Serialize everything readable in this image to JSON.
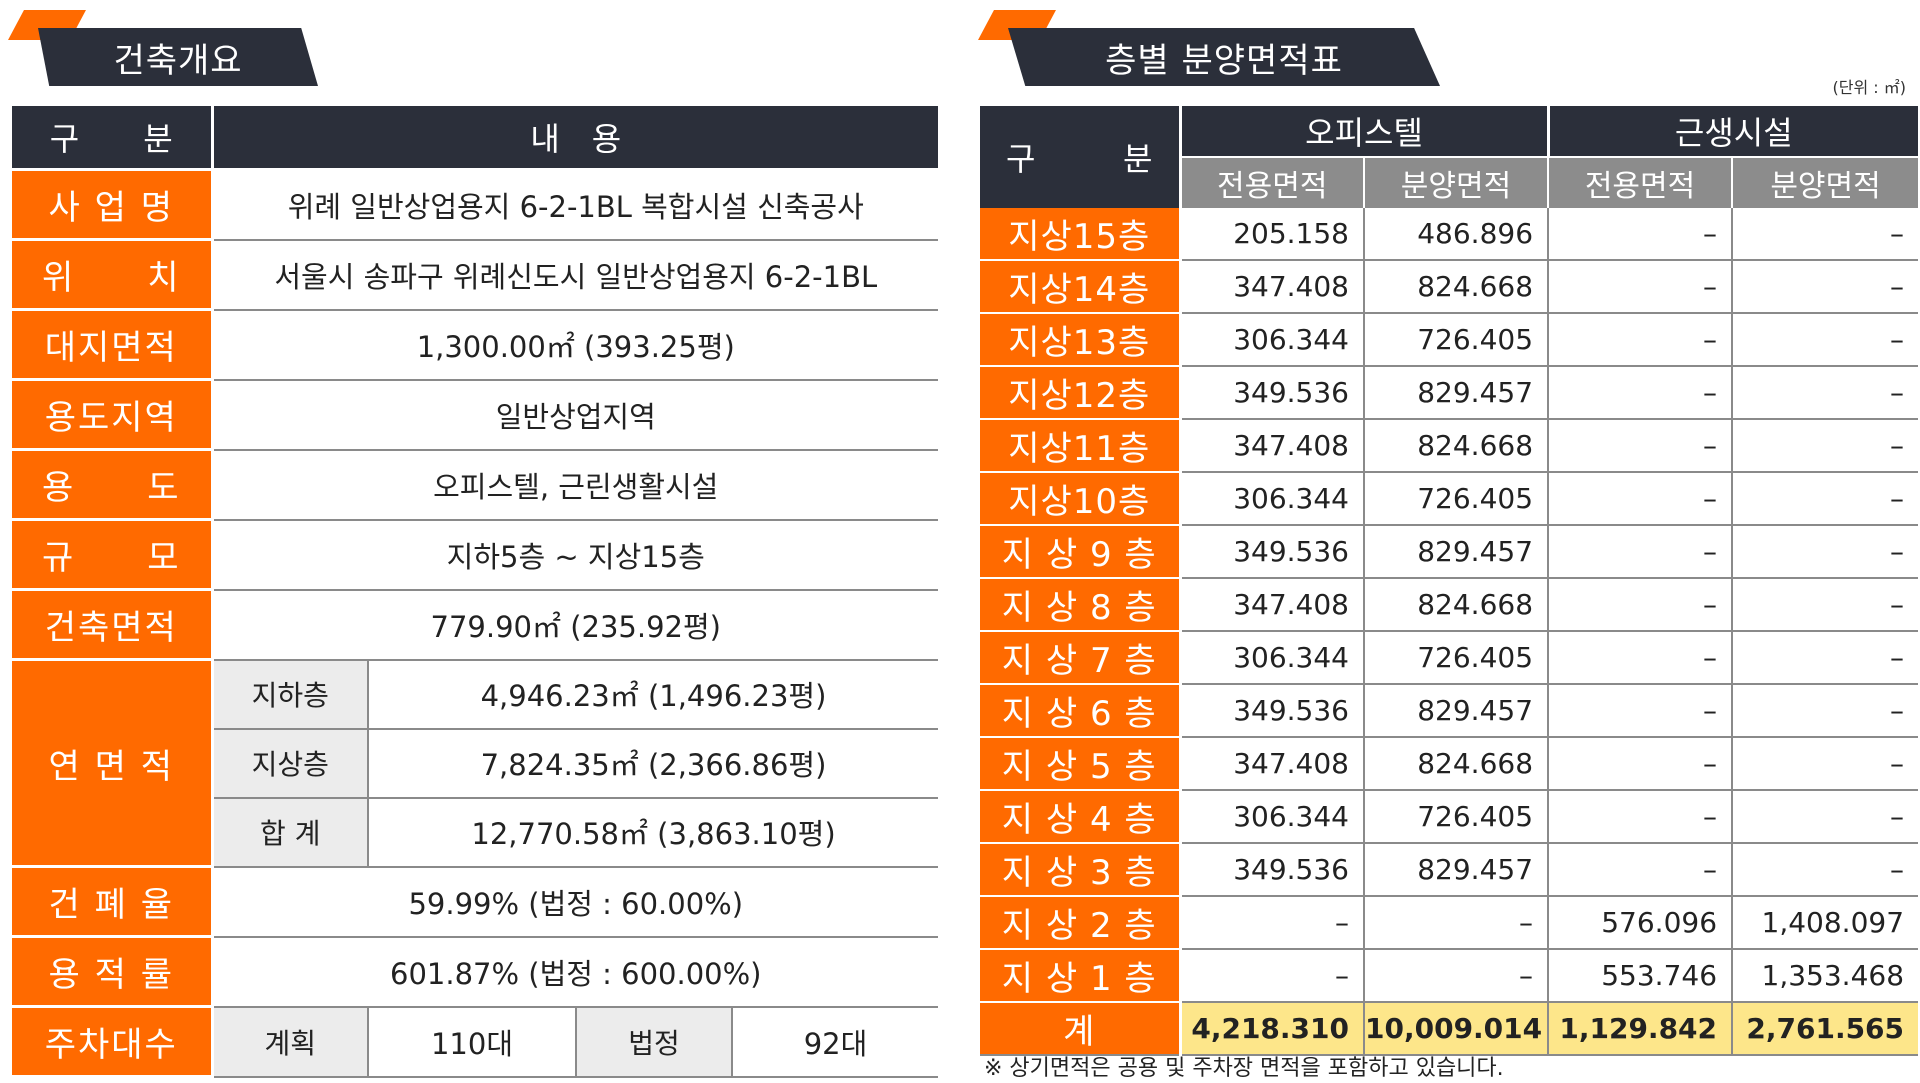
{
  "left_section": {
    "title": "건축개요"
  },
  "right_section": {
    "title": "층별 분양면적표",
    "unit": "(단위 : ㎡)"
  },
  "overview": {
    "header": {
      "col1": "구　　분",
      "col2": "내　용"
    },
    "rows": [
      {
        "key": "사 업 명",
        "value": "위례 일반상업용지 6-2-1BL 복합시설 신축공사"
      },
      {
        "key": "위　　치",
        "value": "서울시 송파구 위례신도시 일반상업용지 6-2-1BL"
      },
      {
        "key": "대지면적",
        "value": "1,300.00㎡ (393.25평)"
      },
      {
        "key": "용도지역",
        "value": "일반상업지역"
      },
      {
        "key": "용　　도",
        "value": "오피스텔, 근린생활시설"
      },
      {
        "key": "규　　모",
        "value": "지하5층 ~ 지상15층"
      },
      {
        "key": "건축면적",
        "value": "779.90㎡ (235.92평)"
      }
    ],
    "gross_area": {
      "key": "연 면 적",
      "rows": [
        {
          "label": "지하층",
          "value": "4,946.23㎡ (1,496.23평)"
        },
        {
          "label": "지상층",
          "value": "7,824.35㎡ (2,366.86평)"
        },
        {
          "label": "합 계",
          "value": "12,770.58㎡ (3,863.10평)"
        }
      ]
    },
    "rows2": [
      {
        "key": "건 폐 율",
        "value": "59.99% (법정 : 60.00%)"
      },
      {
        "key": "용 적 률",
        "value": "601.87% (법정 : 600.00%)"
      }
    ],
    "parking": {
      "key": "주차대수",
      "plan_label": "계획",
      "plan_value": "110대",
      "legal_label": "법정",
      "legal_value": "92대"
    }
  },
  "floors": {
    "header": {
      "gubun_a": "구",
      "gubun_b": "분",
      "group1": "오피스텔",
      "group2": "근생시설",
      "sub1": "전용면적",
      "sub2": "분양면적",
      "sub3": "전용면적",
      "sub4": "분양면적"
    },
    "rows": [
      {
        "floor": "지상15층",
        "v1": "205.158",
        "v2": "486.896",
        "v3": "–",
        "v4": "–"
      },
      {
        "floor": "지상14층",
        "v1": "347.408",
        "v2": "824.668",
        "v3": "–",
        "v4": "–"
      },
      {
        "floor": "지상13층",
        "v1": "306.344",
        "v2": "726.405",
        "v3": "–",
        "v4": "–"
      },
      {
        "floor": "지상12층",
        "v1": "349.536",
        "v2": "829.457",
        "v3": "–",
        "v4": "–"
      },
      {
        "floor": "지상11층",
        "v1": "347.408",
        "v2": "824.668",
        "v3": "–",
        "v4": "–"
      },
      {
        "floor": "지상10층",
        "v1": "306.344",
        "v2": "726.405",
        "v3": "–",
        "v4": "–"
      },
      {
        "floor": "지 상 9 층",
        "v1": "349.536",
        "v2": "829.457",
        "v3": "–",
        "v4": "–"
      },
      {
        "floor": "지 상 8 층",
        "v1": "347.408",
        "v2": "824.668",
        "v3": "–",
        "v4": "–"
      },
      {
        "floor": "지 상 7 층",
        "v1": "306.344",
        "v2": "726.405",
        "v3": "–",
        "v4": "–"
      },
      {
        "floor": "지 상 6 층",
        "v1": "349.536",
        "v2": "829.457",
        "v3": "–",
        "v4": "–"
      },
      {
        "floor": "지 상 5 층",
        "v1": "347.408",
        "v2": "824.668",
        "v3": "–",
        "v4": "–"
      },
      {
        "floor": "지 상 4 층",
        "v1": "306.344",
        "v2": "726.405",
        "v3": "–",
        "v4": "–"
      },
      {
        "floor": "지 상 3 층",
        "v1": "349.536",
        "v2": "829.457",
        "v3": "–",
        "v4": "–"
      },
      {
        "floor": "지 상 2 층",
        "v1": "–",
        "v2": "–",
        "v3": "576.096",
        "v4": "1,408.097"
      },
      {
        "floor": "지 상 1 층",
        "v1": "–",
        "v2": "–",
        "v3": "553.746",
        "v4": "1,353.468"
      }
    ],
    "total": {
      "floor": "계",
      "v1": "4,218.310",
      "v2": "10,009.014",
      "v3": "1,129.842",
      "v4": "2,761.565"
    }
  },
  "footnote": "※ 상기면적은 공용 및 주차장 면적을 포함하고 있습니다.",
  "colors": {
    "accent": "#ff6a00",
    "dark": "#2b2f3a",
    "subheader": "#8c8c8c",
    "total_fill": "#fde68a"
  }
}
